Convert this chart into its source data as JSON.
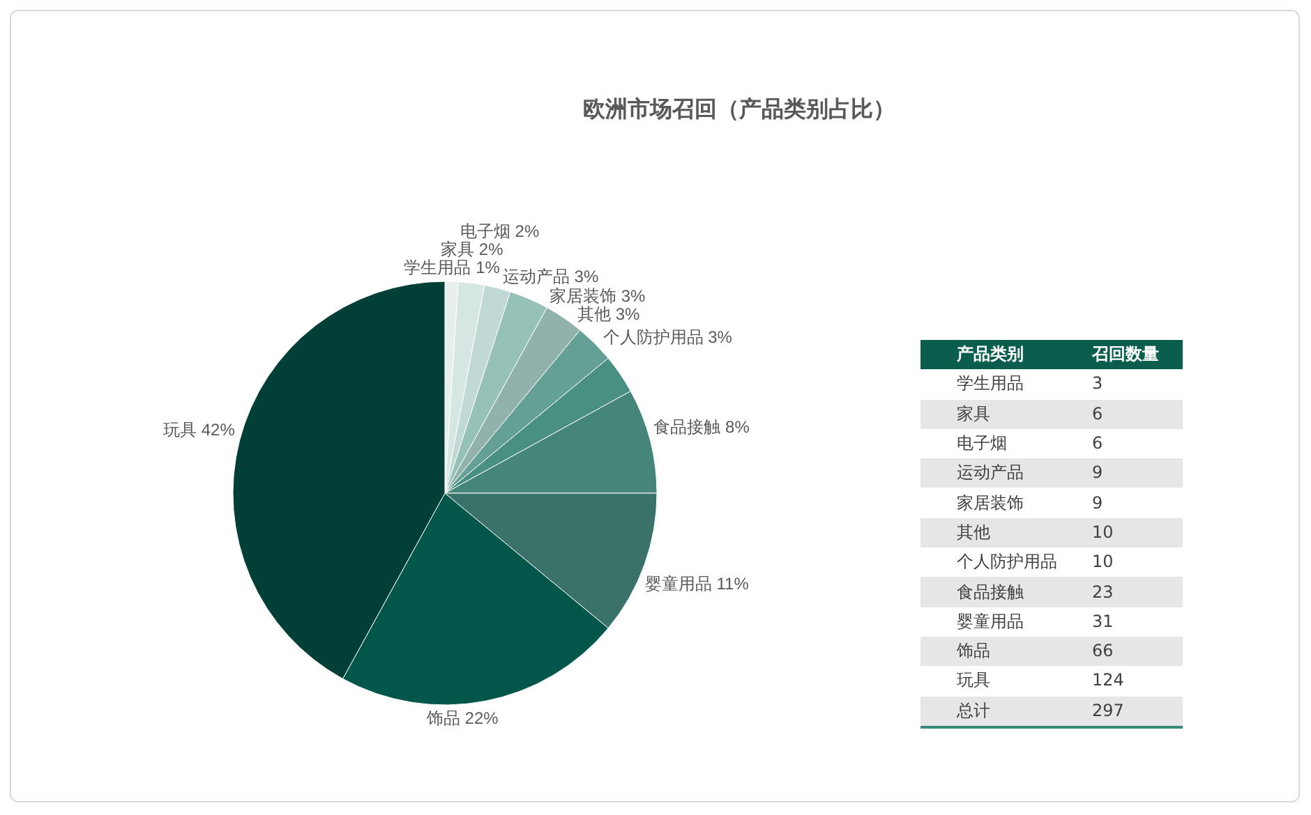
{
  "chart_data": [
    {
      "type": "pie",
      "title": "欧洲市场召回（产品类别占比）",
      "categories": [
        "学生用品",
        "家具",
        "电子烟",
        "运动产品",
        "家居装饰",
        "其他",
        "个人防护用品",
        "食品接触",
        "婴童用品",
        "饰品",
        "玩具"
      ],
      "values": [
        1,
        2,
        2,
        3,
        3,
        3,
        3,
        8,
        11,
        22,
        42
      ],
      "value_labels": [
        "1%",
        "2%",
        "2%",
        "3%",
        "3%",
        "3%",
        "3%",
        "8%",
        "11%",
        "22%",
        "42%"
      ],
      "colors": [
        "#e6efee",
        "#d6e6e3",
        "#c0d9d4",
        "#96c1b7",
        "#91b2ab",
        "#64a095",
        "#4a9082",
        "#46857a",
        "#3a7269",
        "#03574a",
        "#023f37"
      ],
      "legend": false
    },
    {
      "type": "other",
      "xlabel": "产品类别",
      "ylabel": "召回数量",
      "categories": [
        "学生用品",
        "家具",
        "电子烟",
        "运动产品",
        "家居装饰",
        "其他",
        "个人防护用品",
        "食品接触",
        "婴童用品",
        "饰品",
        "玩具"
      ],
      "values": [
        3,
        6,
        6,
        9,
        9,
        10,
        10,
        23,
        31,
        66,
        124
      ],
      "data_labels": true,
      "annotations": [
        "总计"
      ],
      "totals": [
        "297"
      ]
    }
  ]
}
